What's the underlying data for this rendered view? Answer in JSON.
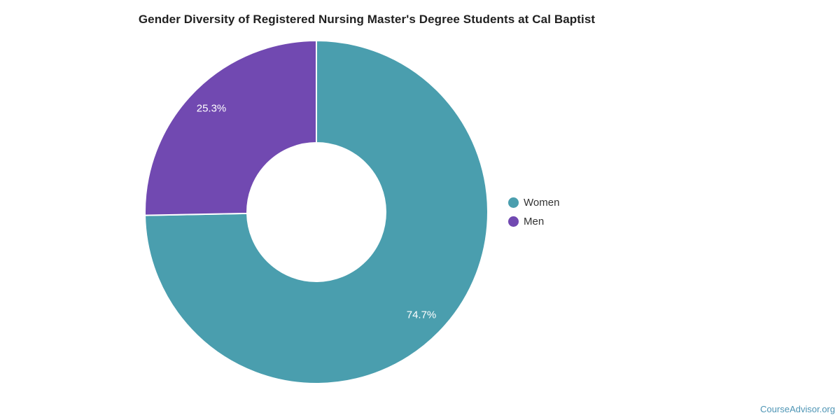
{
  "title": "Gender Diversity of Registered Nursing Master's Degree Students at Cal Baptist",
  "watermark": "CourseAdvisor.org",
  "colors": {
    "women": "#4A9EAE",
    "men": "#7149B1",
    "slice_border": "#FFFFFF",
    "slice_label_text": "#FFFFFF",
    "title_text": "#212121",
    "legend_text": "#333333",
    "watermark_text": "#4E95B5",
    "background": "#FFFFFF"
  },
  "chart_data": {
    "type": "pie",
    "title": "Gender Diversity of Registered Nursing Master's Degree Students at Cal Baptist",
    "categories": [
      "Women",
      "Men"
    ],
    "values": [
      74.7,
      25.3
    ],
    "labels": [
      "74.7%",
      "25.3%"
    ],
    "colors": [
      "#4A9EAE",
      "#7149B1"
    ],
    "donut": true,
    "inner_radius_ratio": 0.404,
    "start_angle_deg": 0,
    "direction": "clockwise",
    "legend_position": "right",
    "slice_border_color": "#FFFFFF",
    "slice_border_width": 2
  },
  "legend": {
    "items": [
      {
        "label": "Women",
        "color": "#4A9EAE"
      },
      {
        "label": "Men",
        "color": "#7149B1"
      }
    ]
  }
}
